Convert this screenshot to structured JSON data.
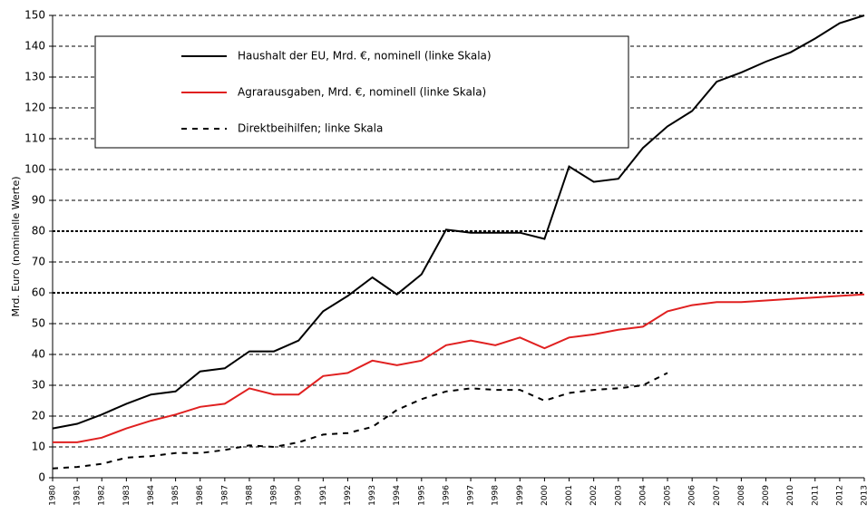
{
  "chart_data": {
    "type": "line",
    "y_label": "Mrd. Euro (nominelle Werte)",
    "categories": [
      "1980",
      "1981",
      "1982",
      "1983",
      "1984",
      "1985",
      "1986",
      "1987",
      "1988",
      "1989",
      "1990",
      "1991",
      "1992",
      "1993",
      "1994",
      "1995",
      "1996",
      "1997",
      "1998",
      "1999",
      "2000",
      "2001",
      "2002",
      "2003",
      "2004",
      "2005",
      "2006",
      "2007",
      "2008",
      "2009",
      "2010",
      "2011",
      "2012",
      "2013"
    ],
    "series": [
      {
        "name": "Haushalt der EU, Mrd. €, nominell (linke Skala)",
        "color": "#000000",
        "style": "solid",
        "values": [
          16,
          17.5,
          20.5,
          24,
          27,
          28,
          34.5,
          35.5,
          41,
          41,
          44.5,
          54,
          59,
          65,
          59.5,
          66,
          80.5,
          79.5,
          79.5,
          79.5,
          77.5,
          101,
          96,
          97,
          107,
          114,
          119,
          128.5,
          131.5,
          135,
          138,
          142.5,
          147.5,
          150
        ]
      },
      {
        "name": "Agrarausgaben, Mrd. €, nominell (linke Skala)",
        "color": "#e02020",
        "style": "solid",
        "values": [
          11.5,
          11.5,
          13,
          16,
          18.5,
          20.5,
          23,
          24,
          29,
          27,
          27,
          33,
          34,
          38,
          36.5,
          38,
          43,
          44.5,
          43,
          45.5,
          42,
          45.5,
          46.5,
          48,
          49,
          54,
          56,
          57,
          57,
          57.5,
          58,
          58.5,
          59,
          59.5
        ]
      },
      {
        "name": "Direktbeihilfen; linke Skala",
        "color": "#000000",
        "style": "dashed",
        "values": [
          3,
          3.5,
          4.5,
          6.5,
          7,
          8,
          8,
          9,
          10.5,
          10,
          11.5,
          14,
          14.5,
          16.5,
          22,
          25.5,
          28,
          29,
          28.5,
          28.5,
          25,
          27.5,
          28.5,
          29,
          30,
          34,
          null,
          null,
          null,
          null,
          null,
          null,
          null,
          null
        ]
      }
    ],
    "ylim": [
      0,
      150
    ],
    "yticks": [
      0,
      10,
      20,
      30,
      40,
      50,
      60,
      70,
      80,
      90,
      100,
      110,
      120,
      130,
      140,
      150
    ],
    "grid": true,
    "highlight_lines": [
      60,
      80
    ],
    "legend": "top-left"
  }
}
